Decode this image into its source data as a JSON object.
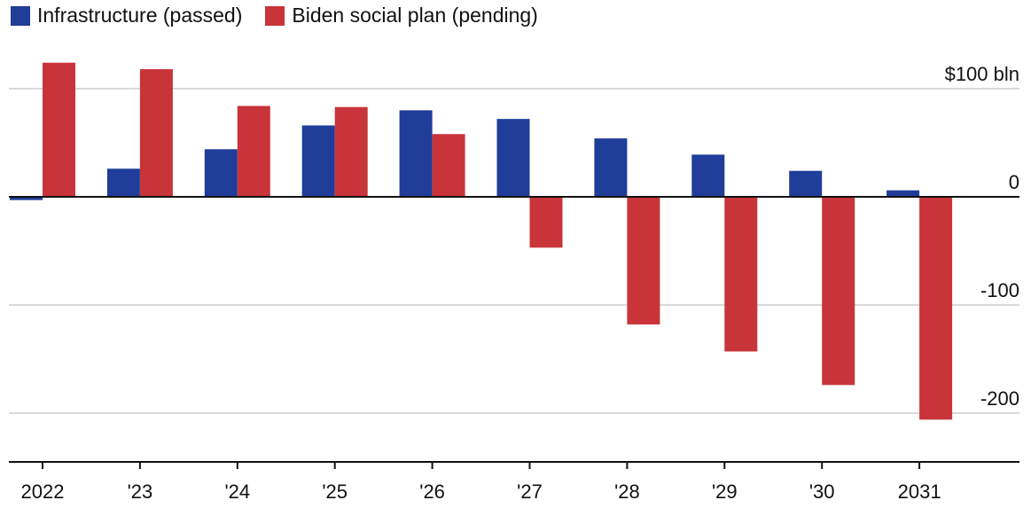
{
  "legend": {
    "infrastructure": "Infrastructure (passed)",
    "social": "Biden social plan (pending)"
  },
  "colors": {
    "infrastructure": "#1f3d99",
    "social": "#c8343a",
    "gridline": "#d9d9d9",
    "axis": "#111111"
  },
  "chart_data": {
    "type": "bar",
    "categories": [
      "2022",
      "'23",
      "'24",
      "'25",
      "'26",
      "'27",
      "'28",
      "'29",
      "'30",
      "2031"
    ],
    "series": [
      {
        "name": "Infrastructure (passed)",
        "values": [
          -3,
          26,
          44,
          66,
          80,
          72,
          54,
          39,
          24,
          6
        ]
      },
      {
        "name": "Biden social plan (pending)",
        "values": [
          124,
          118,
          84,
          83,
          58,
          -47,
          -118,
          -143,
          -174,
          -206
        ]
      }
    ],
    "ylim": [
      -245,
      125
    ],
    "yticks": [
      {
        "value": 100,
        "label": "$100 bln"
      },
      {
        "value": 0,
        "label": "0"
      },
      {
        "value": -100,
        "label": "-100"
      },
      {
        "value": -200,
        "label": "-200"
      }
    ],
    "grid": true,
    "legend_position": "top-left"
  }
}
